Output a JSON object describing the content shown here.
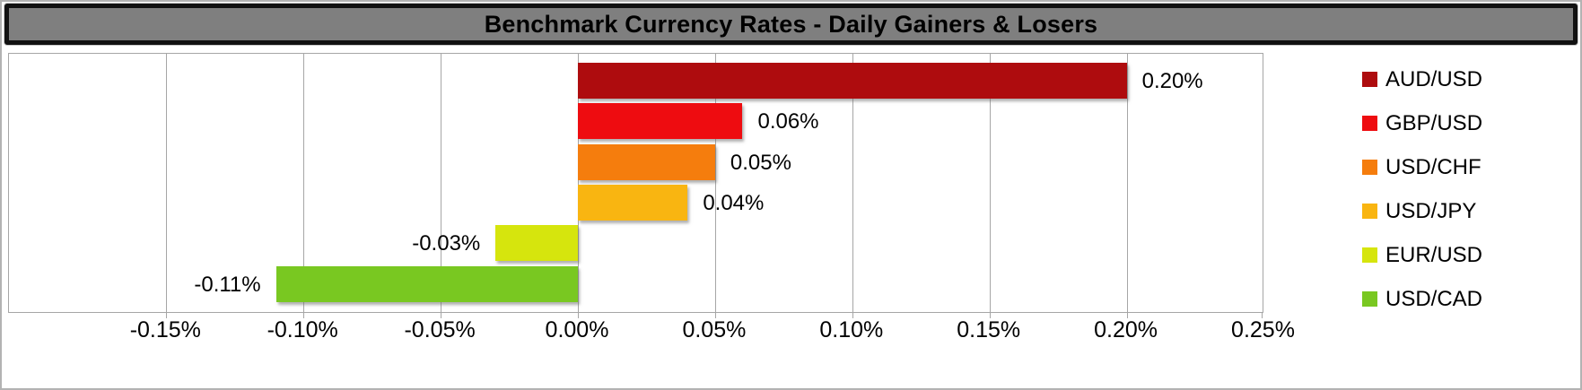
{
  "title": "Benchmark Currency Rates - Daily Gainers & Losers",
  "chart_data": {
    "type": "bar",
    "orientation": "horizontal",
    "title": "Benchmark Currency Rates - Daily Gainers & Losers",
    "categories": [
      "AUD/USD",
      "GBP/USD",
      "USD/CHF",
      "USD/JPY",
      "EUR/USD",
      "USD/CAD"
    ],
    "values": [
      0.2,
      0.06,
      0.05,
      0.04,
      -0.03,
      -0.11
    ],
    "value_labels": [
      "0.20%",
      "0.06%",
      "0.05%",
      "0.04%",
      "-0.03%",
      "-0.11%"
    ],
    "bar_colors": [
      "#AE0C0E",
      "#EE0C10",
      "#F57D0D",
      "#F9B511",
      "#D6E50D",
      "#79C821"
    ],
    "x_tick_labels": [
      "-0.15%",
      "-0.10%",
      "-0.05%",
      "0.00%",
      "0.05%",
      "0.10%",
      "0.15%",
      "0.20%",
      "0.25%"
    ],
    "x_tick_values": [
      -0.15,
      -0.1,
      -0.05,
      0.0,
      0.05,
      0.1,
      0.15,
      0.2,
      0.25
    ],
    "xlim": [
      -0.2073,
      0.2495
    ],
    "grid": true,
    "legend_position": "right",
    "legend_entries": [
      "AUD/USD",
      "GBP/USD",
      "USD/CHF",
      "USD/JPY",
      "EUR/USD",
      "USD/CAD"
    ]
  },
  "colors": {
    "title_bg": "#7F7F7F",
    "title_border": "#111111",
    "title_text": "#000000",
    "grid": "#A6A6A6",
    "plot_border": "#A6A6A6",
    "background": "#FFFFFF"
  }
}
